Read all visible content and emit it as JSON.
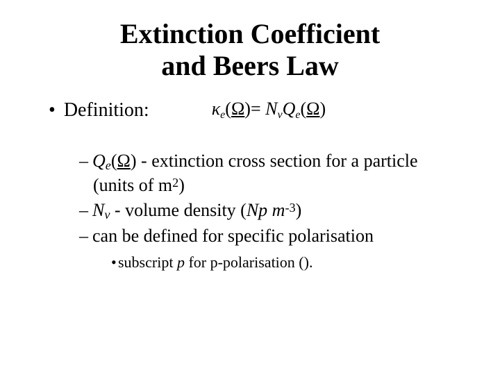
{
  "title_line1": "Extinction Coefficient",
  "title_line2": "and Beers Law",
  "definition_label": "Definition:",
  "formula": {
    "kappa": "κ",
    "k_sub": "e",
    "Omega": "Ω",
    "eq": "=",
    "N": "N",
    "N_sub": "v",
    "Q": "Q",
    "Q_sub": "e"
  },
  "items": {
    "qe_label": "Q",
    "qe_sub": "e",
    "omega": "Ω",
    "qe_text": " - extinction cross section for a particle (units of m",
    "qe_sup": "2",
    "qe_text_end": ")",
    "nv_label": "N",
    "nv_sub": "v",
    "nv_text": " - volume density (",
    "np": "Np m",
    "nv_sup": "-3",
    "nv_text_end": ")",
    "pol_text": "can be defined for specific polarisation",
    "sub_note_pre": "subscript ",
    "sub_note_p": "p",
    "sub_note_post": " for p-polarisation ()."
  }
}
